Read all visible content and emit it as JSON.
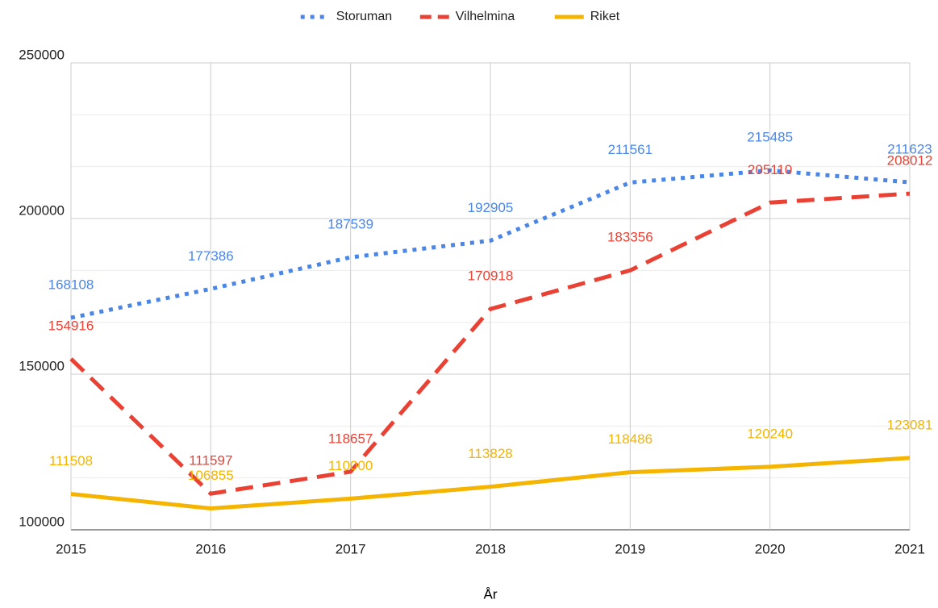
{
  "chart_data": {
    "type": "line",
    "x": [
      2015,
      2016,
      2017,
      2018,
      2019,
      2020,
      2021
    ],
    "xlim": [
      2015,
      2021
    ],
    "xticks": [
      2015,
      2016,
      2017,
      2018,
      2019,
      2020,
      2021
    ],
    "ylim": [
      100000,
      250000
    ],
    "yticks": [
      100000,
      150000,
      200000,
      250000
    ],
    "minor_grid_divisions": 3,
    "grid": true,
    "legend": "top",
    "x_label": "År",
    "series": [
      {
        "name": "Storuman",
        "color": "#4a86e8",
        "style": "dotted",
        "values": [
          168108,
          177386,
          187539,
          192905,
          211561,
          215485,
          211623
        ]
      },
      {
        "name": "Vilhelmina",
        "color": "#e94235",
        "style": "dashed",
        "values": [
          154916,
          111597,
          118657,
          170918,
          183356,
          205110,
          208012
        ]
      },
      {
        "name": "Riket",
        "color": "#f4b400",
        "style": "solid",
        "values": [
          111508,
          106855,
          110000,
          113828,
          118486,
          120240,
          123081
        ]
      }
    ]
  }
}
